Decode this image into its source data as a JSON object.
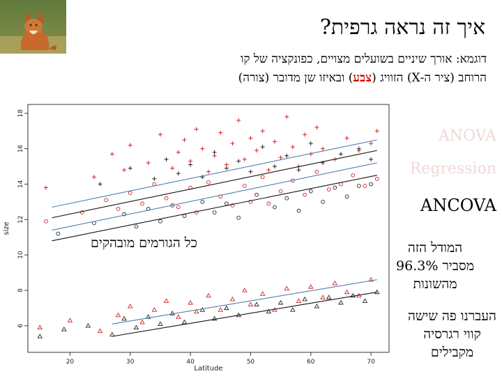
{
  "slide": {
    "title": "איך זה נראה גרפית?",
    "subtitle_line1": "דוגמא: אורך שיניים בשועלים מצויים, כפונקציה של קו",
    "subtitle_line2_pre": "הרוחב (ציר ה-X) הזוויג (",
    "subtitle_line2_accent": "צבע",
    "subtitle_line2_post": ") ובאיזו שן מדובר (צורה)",
    "methods": [
      "ANOVA",
      "Regression",
      "ANCOVA"
    ],
    "annotation_all_factors": "כל הגורמים מובהקים",
    "model_note_line1": "המודל הזה",
    "model_note_line2_word": "מסביר",
    "model_note_line2_pct": "96.3%",
    "model_note_line3": "מהשונות",
    "lines_note_line1": "העברנו פה שישה",
    "lines_note_line2": "קווי רגרסיה",
    "lines_note_line3": "מקבילים"
  },
  "chart_data": {
    "type": "scatter",
    "xlabel": "Latitude",
    "ylabel": "size",
    "xlim": [
      13,
      73
    ],
    "ylim": [
      4.5,
      18.5
    ],
    "xticks": [
      20,
      30,
      40,
      50,
      60,
      70
    ],
    "yticks": [
      6,
      8,
      10,
      12,
      14,
      16,
      18
    ],
    "colors": {
      "red": "#d42020",
      "black": "#222222",
      "blue_line": "#4f7fb0",
      "black_line": "#111111"
    },
    "regression_lines": [
      {
        "color": "blue_line",
        "x": [
          27,
          71
        ],
        "y": [
          6.1,
          8.6
        ]
      },
      {
        "color": "black_line",
        "x": [
          27,
          71
        ],
        "y": [
          5.4,
          7.9
        ]
      },
      {
        "color": "blue_line",
        "x": [
          17,
          71
        ],
        "y": [
          12.7,
          16.5
        ]
      },
      {
        "color": "black_line",
        "x": [
          17,
          71
        ],
        "y": [
          12.1,
          15.9
        ]
      },
      {
        "color": "blue_line",
        "x": [
          17,
          71
        ],
        "y": [
          11.4,
          15.2
        ]
      },
      {
        "color": "black_line",
        "x": [
          17,
          71
        ],
        "y": [
          10.8,
          14.5
        ]
      }
    ],
    "point_groups": [
      {
        "shape": "plus",
        "color": "red",
        "x": [
          16,
          24,
          27,
          29,
          30,
          33,
          35,
          37,
          38,
          39,
          40,
          41,
          42,
          43,
          44,
          45,
          46,
          47,
          48,
          49,
          50,
          51,
          52,
          53,
          54,
          55,
          56,
          57,
          58,
          59,
          60,
          61,
          62,
          64,
          66,
          68,
          70,
          71
        ],
        "y": [
          13.8,
          14.4,
          15.7,
          14.8,
          16.2,
          15.2,
          16.8,
          14.9,
          15.8,
          16.5,
          15.3,
          17.1,
          16.0,
          14.7,
          15.6,
          16.9,
          15.1,
          16.3,
          17.6,
          15.4,
          16.6,
          15.9,
          17.0,
          14.8,
          16.4,
          15.5,
          17.8,
          16.1,
          15.0,
          16.8,
          15.7,
          17.2,
          16.0,
          15.4,
          16.6,
          15.9,
          16.3,
          17.0
        ]
      },
      {
        "shape": "plus",
        "color": "black",
        "x": [
          25,
          30,
          34,
          36,
          38,
          40,
          42,
          44,
          46,
          48,
          50,
          52,
          54,
          56,
          58,
          60,
          62,
          65,
          68,
          70
        ],
        "y": [
          14.0,
          14.9,
          14.3,
          15.4,
          14.6,
          15.1,
          14.4,
          15.8,
          14.9,
          15.3,
          14.7,
          16.1,
          15.0,
          15.6,
          14.8,
          16.3,
          15.2,
          15.7,
          16.0,
          15.4
        ]
      },
      {
        "shape": "circle",
        "color": "red",
        "x": [
          16,
          22,
          26,
          28,
          30,
          32,
          34,
          36,
          38,
          40,
          41,
          43,
          45,
          47,
          49,
          50,
          52,
          53,
          55,
          57,
          59,
          61,
          63,
          65,
          67,
          69,
          71
        ],
        "y": [
          11.9,
          12.4,
          13.1,
          12.6,
          13.5,
          12.9,
          14.0,
          13.2,
          12.7,
          13.8,
          12.4,
          14.1,
          13.3,
          12.8,
          13.9,
          13.0,
          14.4,
          12.9,
          13.6,
          14.2,
          13.4,
          14.7,
          13.7,
          14.0,
          14.5,
          13.9,
          14.3
        ]
      },
      {
        "shape": "circle",
        "color": "black",
        "x": [
          18,
          24,
          29,
          31,
          33,
          35,
          37,
          39,
          42,
          44,
          46,
          48,
          51,
          54,
          56,
          58,
          60,
          62,
          64,
          66,
          68,
          70
        ],
        "y": [
          11.2,
          11.8,
          12.3,
          11.6,
          12.6,
          11.9,
          12.8,
          12.2,
          13.0,
          12.4,
          12.9,
          12.1,
          13.4,
          12.7,
          13.2,
          12.5,
          13.6,
          13.0,
          13.8,
          13.3,
          13.9,
          14.0
        ]
      },
      {
        "shape": "triangle",
        "color": "red",
        "x": [
          15,
          20,
          25,
          28,
          30,
          32,
          34,
          36,
          38,
          40,
          41,
          43,
          45,
          47,
          49,
          50,
          52,
          54,
          56,
          58,
          60,
          62,
          64,
          66,
          68,
          70
        ],
        "y": [
          5.9,
          6.3,
          5.7,
          6.6,
          7.1,
          6.2,
          6.9,
          7.4,
          6.5,
          7.3,
          6.8,
          7.7,
          6.9,
          7.5,
          8.0,
          7.2,
          7.8,
          6.9,
          8.1,
          7.4,
          8.2,
          7.6,
          8.4,
          7.9,
          7.7,
          8.6
        ]
      },
      {
        "shape": "triangle",
        "color": "black",
        "x": [
          15,
          19,
          23,
          27,
          29,
          31,
          33,
          35,
          37,
          39,
          42,
          44,
          46,
          48,
          51,
          53,
          55,
          57,
          59,
          61,
          63,
          65,
          67,
          69,
          71
        ],
        "y": [
          5.4,
          5.8,
          6.0,
          5.5,
          6.4,
          5.9,
          6.5,
          6.1,
          6.7,
          6.2,
          6.9,
          6.4,
          7.0,
          6.6,
          7.2,
          6.8,
          7.3,
          6.9,
          7.5,
          7.1,
          7.6,
          7.3,
          7.7,
          7.4,
          7.9
        ]
      }
    ]
  }
}
